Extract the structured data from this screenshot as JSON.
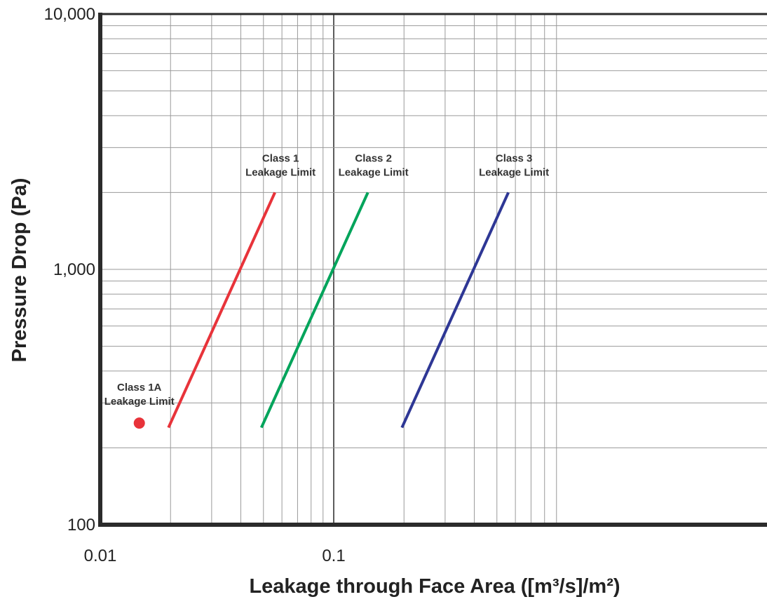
{
  "chart_data": {
    "type": "line",
    "xlabel": "Leakage through Face Area ([m³/s]/m²)",
    "ylabel": "Pressure Drop (Pa)",
    "xscale": "log",
    "yscale": "log",
    "xlim": [
      0.01,
      0.6
    ],
    "ylim": [
      100,
      10000
    ],
    "grid": true,
    "x_ticks": [
      {
        "value": 0.01,
        "label": "0.01"
      },
      {
        "value": 0.1,
        "label": "0.1"
      }
    ],
    "y_ticks": [
      {
        "value": 100,
        "label": "100"
      },
      {
        "value": 1000,
        "label": "1,000"
      },
      {
        "value": 10000,
        "label": "10,000"
      }
    ],
    "series": [
      {
        "name": "Class 1 Leakage Limit",
        "color": "#e8333a",
        "points": [
          {
            "x": 0.0196,
            "y": 240
          },
          {
            "x": 0.056,
            "y": 2000
          }
        ]
      },
      {
        "name": "Class 2 Leakage Limit",
        "color": "#00a45b",
        "points": [
          {
            "x": 0.049,
            "y": 240
          },
          {
            "x": 0.14,
            "y": 2000
          }
        ]
      },
      {
        "name": "Class 3 Leakage Limit",
        "color": "#2e3795",
        "points": [
          {
            "x": 0.196,
            "y": 240
          },
          {
            "x": 0.56,
            "y": 2000
          }
        ]
      },
      {
        "name": "Class 1A Leakage Limit",
        "color": "#e8333a",
        "marker": "circle",
        "points": [
          {
            "x": 0.0147,
            "y": 250
          }
        ]
      }
    ],
    "annotations": [
      {
        "series": 0,
        "line1": "Class 1",
        "line2": "Leakage Limit",
        "anchor": "end"
      },
      {
        "series": 1,
        "line1": "Class 2",
        "line2": "Leakage Limit",
        "anchor": "end"
      },
      {
        "series": 2,
        "line1": "Class 3",
        "line2": "Leakage Limit",
        "anchor": "end"
      },
      {
        "series": 3,
        "line1": "Class 1A",
        "line2": "Leakage Limit",
        "anchor": "point"
      }
    ]
  }
}
